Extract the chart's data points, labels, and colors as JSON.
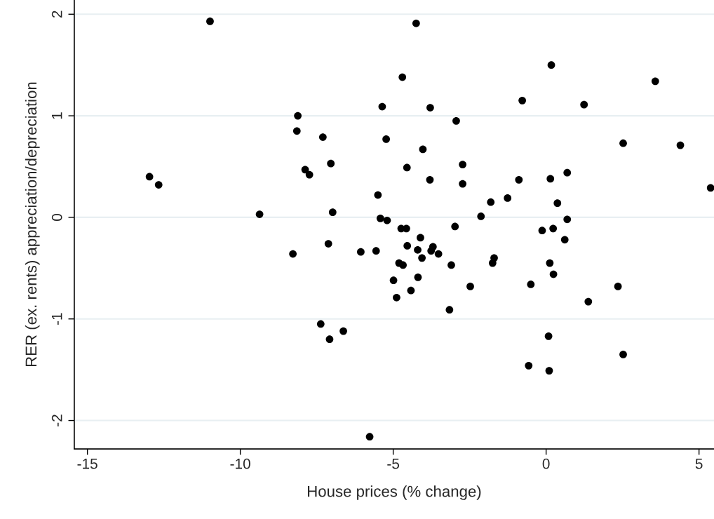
{
  "chart_data": {
    "type": "scatter",
    "xlabel": "House prices (% change)",
    "ylabel": "RER (ex. rents) appreciation/depreciation",
    "series": [
      {
        "color": "#000000",
        "x": [
          -12.97,
          -12.67,
          -10.99,
          -9.37,
          -4.7,
          -4.25,
          -5.77,
          -8.12,
          -8.15,
          -7.3,
          -5.36,
          -3.79,
          -2.94,
          -5.23,
          -4.03,
          -7.04,
          -7.88,
          -7.74,
          -4.55,
          -3.8,
          -2.73,
          -2.73,
          -0.89,
          -1.26,
          -1.81,
          -2.13,
          -5.5,
          -6.98,
          -5.42,
          -5.2,
          -4.74,
          -4.57,
          -2.98,
          -0.13,
          -4.11,
          -7.12,
          -8.28,
          -6.06,
          -5.56,
          -4.54,
          -4.2,
          -3.7,
          -3.76,
          -3.52,
          -4.06,
          -1.7,
          -1.75,
          -4.81,
          -4.68,
          -3.1,
          -4.99,
          -4.19,
          -4.42,
          -4.89,
          -2.48,
          -0.5,
          -3.16,
          -7.37,
          -6.63,
          -7.08,
          -0.57,
          0.17,
          3.57,
          -0.78,
          1.24,
          2.52,
          4.39,
          0.69,
          0.14,
          5.38,
          0.37,
          0.69,
          0.23,
          0.61,
          0.12,
          0.24,
          2.35,
          1.38,
          0.08,
          2.52,
          0.1
        ],
        "values": [
          0.4,
          0.32,
          1.93,
          0.03,
          1.38,
          1.91,
          -2.16,
          1.0,
          0.85,
          0.79,
          1.09,
          1.08,
          0.95,
          0.77,
          0.67,
          0.53,
          0.47,
          0.42,
          0.49,
          0.37,
          0.52,
          0.33,
          0.37,
          0.19,
          0.15,
          0.01,
          0.22,
          0.05,
          -0.01,
          -0.03,
          -0.11,
          -0.11,
          -0.09,
          -0.13,
          -0.2,
          -0.26,
          -0.36,
          -0.34,
          -0.33,
          -0.28,
          -0.32,
          -0.29,
          -0.33,
          -0.36,
          -0.4,
          -0.4,
          -0.45,
          -0.45,
          -0.47,
          -0.47,
          -0.62,
          -0.59,
          -0.72,
          -0.79,
          -0.68,
          -0.66,
          -0.91,
          -1.05,
          -1.12,
          -1.2,
          -1.46,
          1.5,
          1.34,
          1.15,
          1.11,
          0.73,
          0.71,
          0.44,
          0.38,
          0.29,
          0.14,
          -0.02,
          -0.11,
          -0.22,
          -0.45,
          -0.56,
          -0.68,
          -0.83,
          -1.17,
          -1.35,
          -1.51
        ]
      }
    ],
    "xlim": [
      -15.43,
      5.49
    ],
    "ylim": [
      -2.28,
      2.14
    ],
    "xticks": [
      {
        "value": -15,
        "label": "-15"
      },
      {
        "value": -10,
        "label": "-10"
      },
      {
        "value": -5,
        "label": "-5"
      },
      0,
      5
    ],
    "yticks": [
      {
        "value": -2,
        "label": "-2"
      },
      {
        "value": -1,
        "label": "-1"
      },
      0,
      1,
      2
    ],
    "grid": "y",
    "marker": "circle"
  }
}
